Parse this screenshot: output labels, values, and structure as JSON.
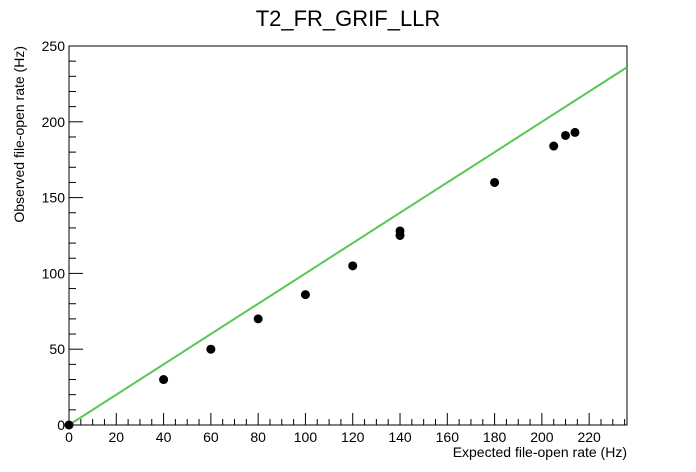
{
  "chart_data": {
    "type": "scatter",
    "title": "T2_FR_GRIF_LLR",
    "xlabel": "Expected file-open rate (Hz)",
    "ylabel": "Observed file-open rate (Hz)",
    "xlim": [
      0,
      236
    ],
    "ylim": [
      0,
      250
    ],
    "x_ticks": [
      0,
      20,
      40,
      60,
      80,
      100,
      120,
      140,
      160,
      180,
      200,
      220
    ],
    "y_ticks": [
      0,
      50,
      100,
      150,
      200,
      250
    ],
    "grid": false,
    "series": [
      {
        "type": "scatter",
        "color": "#000000",
        "points": [
          {
            "x": 0,
            "y": 0
          },
          {
            "x": 40,
            "y": 30
          },
          {
            "x": 60,
            "y": 50
          },
          {
            "x": 80,
            "y": 70
          },
          {
            "x": 100,
            "y": 86
          },
          {
            "x": 120,
            "y": 105
          },
          {
            "x": 140,
            "y": 125
          },
          {
            "x": 140,
            "y": 128
          },
          {
            "x": 180,
            "y": 160
          },
          {
            "x": 205,
            "y": 184
          },
          {
            "x": 210,
            "y": 191
          },
          {
            "x": 214,
            "y": 193
          }
        ]
      },
      {
        "type": "line",
        "color": "#55c855",
        "points": [
          {
            "x": 0,
            "y": 0
          },
          {
            "x": 236,
            "y": 236
          }
        ]
      }
    ]
  }
}
